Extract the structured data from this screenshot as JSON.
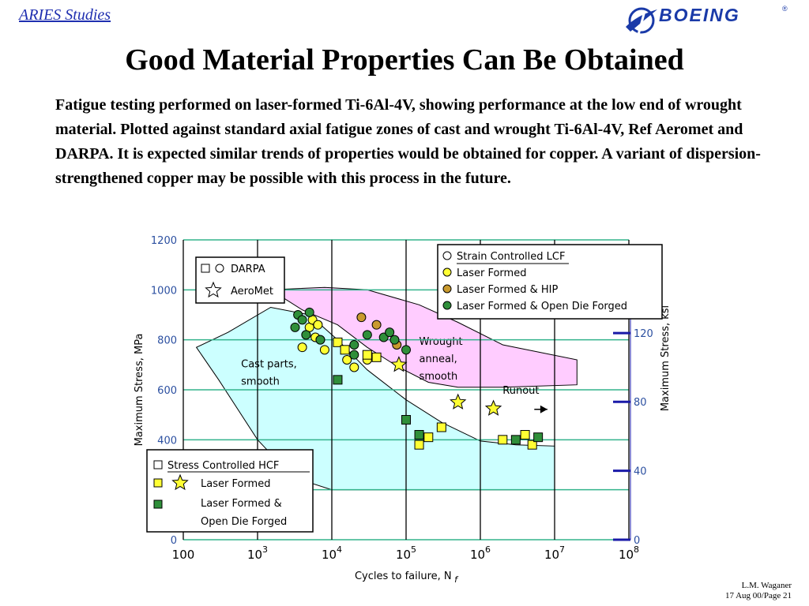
{
  "header": {
    "link_text": "ARIES Studies",
    "logo_text": "BOEING",
    "logo_mark": "®"
  },
  "title": "Good Material Properties Can Be Obtained",
  "description": "Fatigue testing performed on laser-formed Ti-6Al-4V, showing performance at the low end of wrought material.  Plotted against standard axial fatigue zones of cast and wrought Ti-6Al-4V, Ref Aeromet and DARPA.  It is expected similar trends of properties would be obtained for copper.  A variant of dispersion-strengthened copper may be possible with this process in the future.",
  "footer": {
    "author": "L.M. Waganer",
    "date_page": "17 Aug 00/Page 21"
  },
  "colors": {
    "cast_zone": "#ccffff",
    "wrought_zone": "#ffccff",
    "grid": "#33b38c",
    "laser_formed": "#ffff33",
    "laser_formed_hip": "#c99a2e",
    "open_die_forged": "#2f8f3a",
    "ksi_tick": "#1a1aa8"
  },
  "chart_data": {
    "type": "scatter",
    "title": "",
    "xlabel": "Cycles to failure, N",
    "xlabel_sub": "f",
    "ylabel": "Maximum Stress, MPa",
    "ylabel_right": "Maximum Stress, ksi",
    "x_scale": "log",
    "xlim": [
      100,
      100000000
    ],
    "ylim": [
      0,
      1200
    ],
    "grid": true,
    "x_ticks": [
      {
        "value": 100,
        "base": "100",
        "exp": ""
      },
      {
        "value": 1000,
        "base": "10",
        "exp": "3"
      },
      {
        "value": 10000,
        "base": "10",
        "exp": "4"
      },
      {
        "value": 100000,
        "base": "10",
        "exp": "5"
      },
      {
        "value": 1000000,
        "base": "10",
        "exp": "6"
      },
      {
        "value": 10000000,
        "base": "10",
        "exp": "7"
      },
      {
        "value": 100000000,
        "base": "10",
        "exp": "8"
      }
    ],
    "y_ticks": [
      {
        "value": 0,
        "label": "0"
      },
      {
        "value": 200,
        "label": ""
      },
      {
        "value": 400,
        "label": "400"
      },
      {
        "value": 600,
        "label": "600"
      },
      {
        "value": 800,
        "label": "800"
      },
      {
        "value": 1000,
        "label": "1000"
      },
      {
        "value": 1200,
        "label": "1200"
      }
    ],
    "right_ticks": [
      {
        "mpa": 0,
        "label": "0"
      },
      {
        "mpa": 276,
        "label": "40"
      },
      {
        "mpa": 552,
        "label": "80"
      },
      {
        "mpa": 827,
        "label": "120"
      }
    ],
    "zones": [
      {
        "name": "Cast parts, smooth",
        "label_lines": [
          "Cast parts,",
          "smooth"
        ],
        "label_at": [
          600,
          690
        ],
        "color": "cast_zone",
        "polygon": [
          [
            400,
            830
          ],
          [
            1500,
            930
          ],
          [
            5000,
            900
          ],
          [
            12000,
            800
          ],
          [
            30000,
            680
          ],
          [
            100000,
            560
          ],
          [
            300000,
            470
          ],
          [
            1000000,
            395
          ],
          [
            3000000,
            380
          ],
          [
            10000000,
            375
          ],
          [
            10000000,
            200
          ],
          [
            1000000,
            200
          ],
          [
            100000,
            200
          ],
          [
            10000,
            200
          ],
          [
            3000,
            250
          ],
          [
            1000,
            400
          ],
          [
            300,
            640
          ],
          [
            150,
            770
          ]
        ]
      },
      {
        "name": "Wrought anneal, smooth",
        "label_lines": [
          "Wrought",
          "anneal,",
          "smooth"
        ],
        "label_at": [
          150000,
          780
        ],
        "color": "wrought_zone",
        "polygon": [
          [
            1500,
            1000
          ],
          [
            8000,
            1010
          ],
          [
            30000,
            1000
          ],
          [
            150000,
            940
          ],
          [
            500000,
            870
          ],
          [
            2000000,
            780
          ],
          [
            20000000,
            720
          ],
          [
            20000000,
            620
          ],
          [
            2000000,
            610
          ],
          [
            500000,
            610
          ],
          [
            200000,
            630
          ],
          [
            80000,
            690
          ],
          [
            30000,
            770
          ],
          [
            12000,
            860
          ],
          [
            4000,
            920
          ]
        ]
      }
    ],
    "series": [
      {
        "name": "Strain Controlled LCF",
        "marker": "circle",
        "color": "#ffffff",
        "points": []
      },
      {
        "name": "Laser Formed",
        "marker": "circle",
        "color": "laser_formed",
        "points": [
          [
            4000,
            770
          ],
          [
            4500,
            820
          ],
          [
            5000,
            850
          ],
          [
            5500,
            880
          ],
          [
            6000,
            810
          ],
          [
            6500,
            860
          ],
          [
            7000,
            800
          ],
          [
            8000,
            760
          ],
          [
            16000,
            720
          ],
          [
            20000,
            690
          ],
          [
            30000,
            720
          ]
        ]
      },
      {
        "name": "Laser Formed & HIP",
        "marker": "circle",
        "color": "laser_formed_hip",
        "points": [
          [
            25000,
            890
          ],
          [
            40000,
            860
          ],
          [
            75000,
            780
          ]
        ]
      },
      {
        "name": "Laser Formed & Open Die Forged",
        "marker": "circle",
        "color": "open_die_forged",
        "points": [
          [
            3200,
            850
          ],
          [
            3500,
            900
          ],
          [
            4000,
            880
          ],
          [
            4500,
            820
          ],
          [
            5000,
            910
          ],
          [
            7000,
            800
          ],
          [
            20000,
            780
          ],
          [
            20000,
            740
          ],
          [
            30000,
            820
          ],
          [
            50000,
            810
          ],
          [
            60000,
            830
          ],
          [
            70000,
            800
          ],
          [
            100000,
            760
          ]
        ]
      },
      {
        "name": "Stress Controlled HCF",
        "marker": "square",
        "color": "#ffffff",
        "points": []
      },
      {
        "name": "Laser Formed",
        "marker": "square",
        "color": "laser_formed",
        "points": [
          [
            12000,
            790
          ],
          [
            15000,
            760
          ],
          [
            30000,
            740
          ],
          [
            40000,
            730
          ],
          [
            150000,
            380
          ],
          [
            200000,
            410
          ],
          [
            300000,
            450
          ],
          [
            2000000,
            400
          ],
          [
            4000000,
            420
          ],
          [
            5000000,
            380
          ]
        ]
      },
      {
        "name": "Laser Formed & Open Die Forged",
        "marker": "square",
        "color": "open_die_forged",
        "points": [
          [
            12000,
            640
          ],
          [
            100000,
            480
          ],
          [
            150000,
            420
          ],
          [
            3000000,
            400
          ],
          [
            6000000,
            410
          ]
        ]
      },
      {
        "name": "AeroMet",
        "marker": "star",
        "color": "laser_formed",
        "points": [
          [
            80000,
            700
          ],
          [
            500000,
            550
          ],
          [
            1500000,
            525
          ]
        ]
      }
    ],
    "annotations": [
      {
        "text": "Runout",
        "x": 2000000,
        "y": 585,
        "arrow_to": 8000000
      }
    ],
    "legends": [
      {
        "position": "upper-left",
        "title": "DARPA",
        "entries": [
          "DARPA",
          "AeroMet"
        ]
      },
      {
        "position": "top-right",
        "entries": [
          "Strain Controlled LCF",
          "Laser Formed",
          "Laser Formed & HIP",
          "Laser Formed & Open Die Forged"
        ]
      },
      {
        "position": "bottom-left",
        "entries": [
          "Stress Controlled HCF",
          "Laser Formed",
          "Laser Formed &",
          "Open Die Forged"
        ]
      }
    ]
  }
}
